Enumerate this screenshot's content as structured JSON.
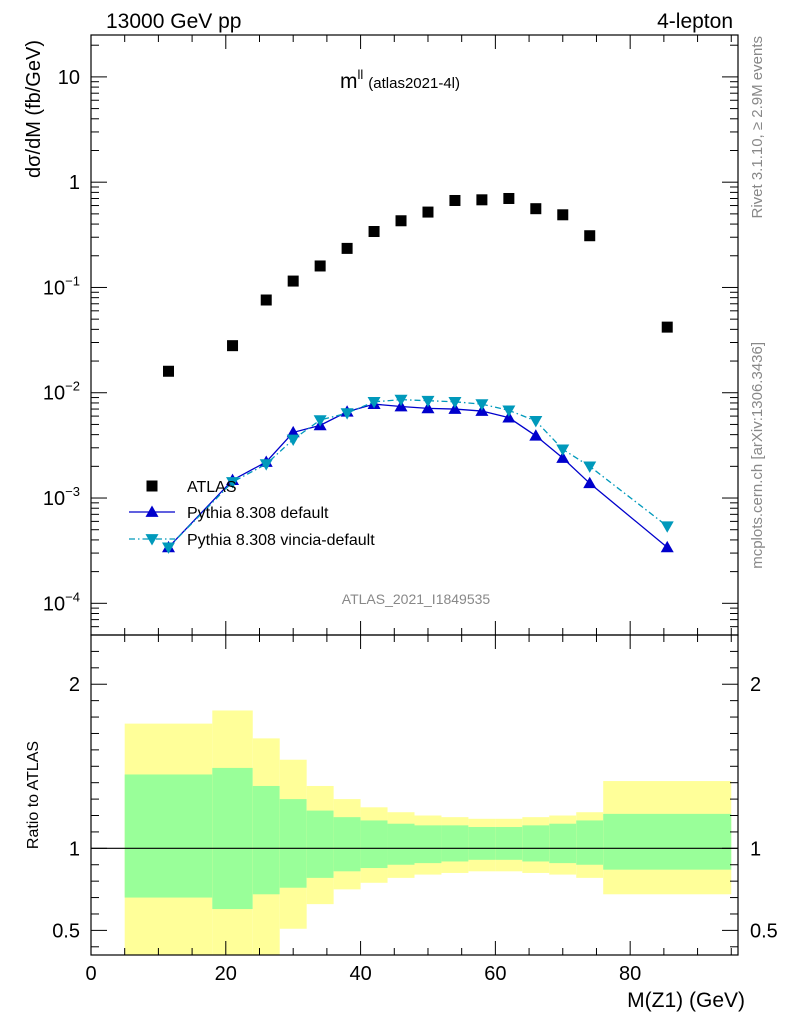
{
  "header": {
    "left": "13000 GeV pp",
    "right": "4-lepton"
  },
  "side_labels": {
    "top": "Rivet 3.1.10, ≥ 2.9M events",
    "bottom": "mcplots.cern.ch [arXiv:1306.3436]"
  },
  "colors": {
    "atlas": "#000000",
    "pythia_default": "#0000cc",
    "pythia_vincia": "#0099bb",
    "band_outer": "#ffff99",
    "band_inner": "#99ff99"
  },
  "chart_data": [
    {
      "type": "scatter",
      "title": "m",
      "title_superscript": "ll",
      "subtitle": "(atlas2021-4l)",
      "watermark": "ATLAS_2021_I1849535",
      "ylabel": "dσ/dM (fb/GeV)",
      "xlim": [
        0,
        96
      ],
      "ylim": [
        5e-05,
        25
      ],
      "yscale": "log",
      "ytick_labels": [
        {
          "value": 10,
          "base": "10",
          "exp": ""
        },
        {
          "value": 1,
          "base": "1",
          "exp": ""
        },
        {
          "value": 0.1,
          "base": "10",
          "exp": "−1"
        },
        {
          "value": 0.01,
          "base": "10",
          "exp": "−2"
        },
        {
          "value": 0.001,
          "base": "10",
          "exp": "−3"
        },
        {
          "value": 0.0001,
          "base": "10",
          "exp": "−4"
        }
      ],
      "legend_position": "bottom-left",
      "series": [
        {
          "name": "ATLAS",
          "marker": "square",
          "x": [
            11.5,
            21,
            26,
            30,
            34,
            38,
            42,
            46,
            50,
            54,
            58,
            62,
            66,
            70,
            74,
            85.5
          ],
          "y": [
            0.016,
            0.028,
            0.076,
            0.115,
            0.16,
            0.235,
            0.34,
            0.43,
            0.52,
            0.67,
            0.68,
            0.7,
            0.56,
            0.49,
            0.31,
            0.042
          ]
        },
        {
          "name": "Pythia 8.308 default",
          "marker": "triangle-up",
          "line": "solid",
          "x": [
            11.5,
            21,
            26,
            30,
            34,
            38,
            42,
            46,
            50,
            54,
            58,
            62,
            66,
            70,
            74,
            85.5
          ],
          "y": [
            0.00034,
            0.00148,
            0.0022,
            0.0042,
            0.0049,
            0.0066,
            0.0078,
            0.0074,
            0.0071,
            0.007,
            0.0067,
            0.0058,
            0.0039,
            0.0024,
            0.00138,
            0.00034
          ]
        },
        {
          "name": "Pythia 8.308 vincia-default",
          "marker": "triangle-down",
          "line": "dashdot",
          "x": [
            11.5,
            21,
            26,
            30,
            34,
            38,
            42,
            46,
            50,
            54,
            58,
            62,
            66,
            70,
            74,
            85.5
          ],
          "y": [
            0.00034,
            0.00142,
            0.0021,
            0.0036,
            0.0055,
            0.0064,
            0.0082,
            0.0086,
            0.0084,
            0.0082,
            0.0078,
            0.0068,
            0.0054,
            0.0029,
            0.002,
            0.00054
          ]
        }
      ]
    },
    {
      "type": "area",
      "ylabel": "Ratio to ATLAS",
      "xlabel": "M(Z1) (GeV)",
      "xlim": [
        0,
        96
      ],
      "ylim": [
        0.35,
        2.3
      ],
      "xticks": [
        0,
        20,
        40,
        60,
        80
      ],
      "yticks": [
        0.5,
        1,
        2
      ],
      "reference": 1,
      "bin_edges": [
        5,
        18,
        24,
        28,
        32,
        36,
        40,
        44,
        48,
        52,
        56,
        60,
        64,
        68,
        72,
        76,
        95
      ],
      "outer_band_lo": [
        0.3,
        0.3,
        0.3,
        0.51,
        0.66,
        0.75,
        0.79,
        0.82,
        0.84,
        0.85,
        0.86,
        0.86,
        0.85,
        0.84,
        0.82,
        0.72
      ],
      "outer_band_hi": [
        1.76,
        1.84,
        1.67,
        1.54,
        1.38,
        1.3,
        1.25,
        1.22,
        1.2,
        1.19,
        1.18,
        1.18,
        1.19,
        1.2,
        1.22,
        1.41
      ],
      "inner_band_lo": [
        0.7,
        0.63,
        0.72,
        0.76,
        0.82,
        0.86,
        0.88,
        0.9,
        0.91,
        0.92,
        0.93,
        0.93,
        0.92,
        0.91,
        0.9,
        0.87
      ],
      "inner_band_hi": [
        1.45,
        1.49,
        1.38,
        1.3,
        1.23,
        1.19,
        1.17,
        1.15,
        1.14,
        1.14,
        1.13,
        1.13,
        1.14,
        1.15,
        1.17,
        1.21
      ]
    }
  ]
}
